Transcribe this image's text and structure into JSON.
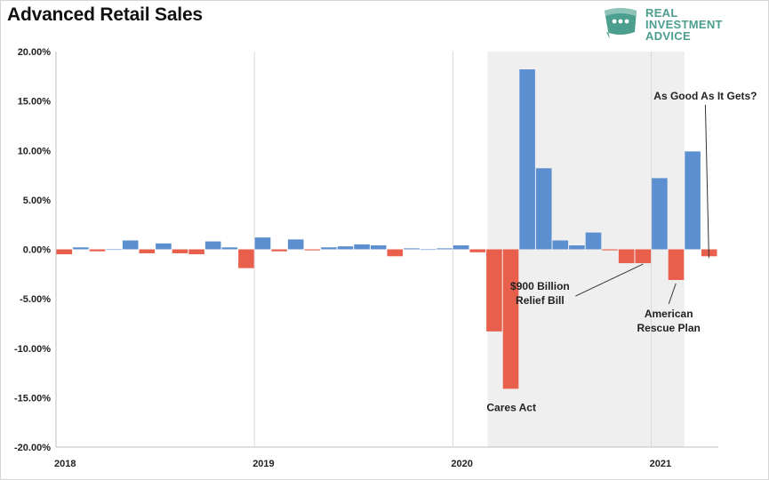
{
  "title": "Advanced Retail Sales",
  "logo": {
    "lines": [
      "REAL",
      "INVESTMENT",
      "ADVICE"
    ],
    "icon": "chat-bubble-icon",
    "color": "#4c9e8e"
  },
  "chart_data": {
    "type": "bar",
    "title": "Advanced Retail Sales",
    "xlabel": "",
    "ylabel": "",
    "ylim": [
      -0.2,
      0.2
    ],
    "yticks": [
      0.2,
      0.15,
      0.1,
      0.05,
      0.0,
      -0.05,
      -0.1,
      -0.15,
      -0.2
    ],
    "ytick_labels": [
      "20.00%",
      "15.00%",
      "10.00%",
      "5.00%",
      "0.00%",
      "-5.00%",
      "-10.00%",
      "-15.00%",
      "-20.00%"
    ],
    "x_start_label": "2018-01",
    "year_labels": [
      "2018",
      "2019",
      "2020",
      "2021"
    ],
    "positive_color": "#5b8fcf",
    "negative_color": "#e8604c",
    "shaded_region": {
      "from_index": 26,
      "to_index": 38,
      "color": "#efefef"
    },
    "grid": "vertical year lines only",
    "values": [
      -0.005,
      0.002,
      -0.002,
      0.0,
      0.009,
      -0.004,
      0.006,
      -0.004,
      -0.005,
      0.008,
      0.002,
      -0.019,
      0.012,
      -0.002,
      0.01,
      -0.001,
      0.002,
      0.003,
      0.005,
      0.004,
      -0.007,
      0.001,
      0.0,
      0.001,
      0.004,
      -0.003,
      -0.083,
      -0.141,
      0.182,
      0.082,
      0.009,
      0.004,
      0.017,
      -0.001,
      -0.014,
      -0.014,
      0.072,
      -0.031,
      0.099,
      -0.007
    ],
    "annotations": [
      {
        "text": "Cares Act",
        "index": 27
      },
      {
        "text": "$900 Billion\nRelief Bill",
        "index": 34
      },
      {
        "text": "American\nRescue Plan",
        "index": 37
      },
      {
        "text": "As Good As It Gets?",
        "index": 39
      }
    ]
  }
}
